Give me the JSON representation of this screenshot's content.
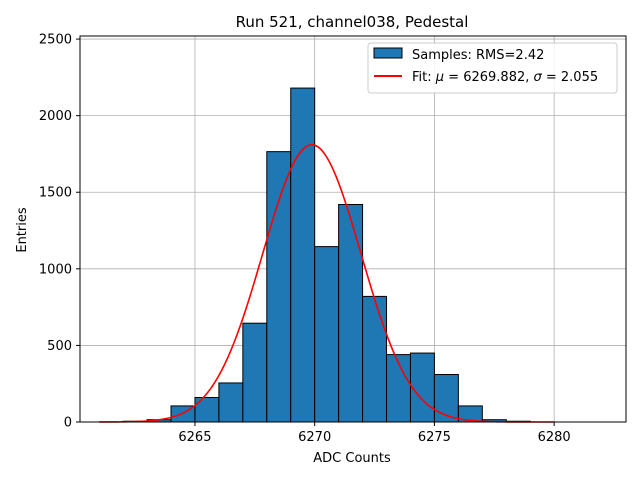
{
  "chart_data": {
    "type": "bar",
    "title": "Run 521, channel038, Pedestal",
    "xlabel": "ADC Counts",
    "ylabel": "Entries",
    "xlim": [
      6260.2,
      6283.0
    ],
    "ylim": [
      0,
      2520
    ],
    "x_ticks": [
      6265,
      6270,
      6275,
      6280
    ],
    "y_ticks": [
      0,
      500,
      1000,
      1500,
      2000,
      2500
    ],
    "grid": true,
    "legend_position": "top-right",
    "colors": {
      "bars": "#1f77b4",
      "bar_edge": "#000000",
      "fit": "#ff0000",
      "grid": "#b0b0b0"
    },
    "series": [
      {
        "name": "Samples: RMS=2.42",
        "kind": "histogram",
        "bins": [
          {
            "x0": 6262,
            "x1": 6263,
            "count": 5
          },
          {
            "x0": 6263,
            "x1": 6264,
            "count": 15
          },
          {
            "x0": 6264,
            "x1": 6265,
            "count": 105
          },
          {
            "x0": 6265,
            "x1": 6266,
            "count": 160
          },
          {
            "x0": 6266,
            "x1": 6267,
            "count": 255
          },
          {
            "x0": 6267,
            "x1": 6268,
            "count": 645
          },
          {
            "x0": 6268,
            "x1": 6269,
            "count": 1765
          },
          {
            "x0": 6269,
            "x1": 6270,
            "count": 2180
          },
          {
            "x0": 6270,
            "x1": 6271,
            "count": 1145
          },
          {
            "x0": 6271,
            "x1": 6272,
            "count": 1420
          },
          {
            "x0": 6272,
            "x1": 6273,
            "count": 820
          },
          {
            "x0": 6273,
            "x1": 6274,
            "count": 440
          },
          {
            "x0": 6274,
            "x1": 6275,
            "count": 450
          },
          {
            "x0": 6275,
            "x1": 6276,
            "count": 310
          },
          {
            "x0": 6276,
            "x1": 6277,
            "count": 105
          },
          {
            "x0": 6277,
            "x1": 6278,
            "count": 15
          },
          {
            "x0": 6278,
            "x1": 6279,
            "count": 5
          }
        ]
      },
      {
        "name": "Fit: μ = 6269.882, σ = 2.055",
        "kind": "gaussian",
        "mu": 6269.882,
        "sigma": 2.055,
        "amplitude": 1810,
        "x_range": [
          6261,
          6280
        ]
      }
    ],
    "legend": [
      {
        "label_prefix": "Samples: RMS=2.42",
        "label_suffix": ""
      },
      {
        "label_prefix": "Fit: μ = 6269.882, σ = 2.055",
        "label_suffix": ""
      }
    ]
  }
}
